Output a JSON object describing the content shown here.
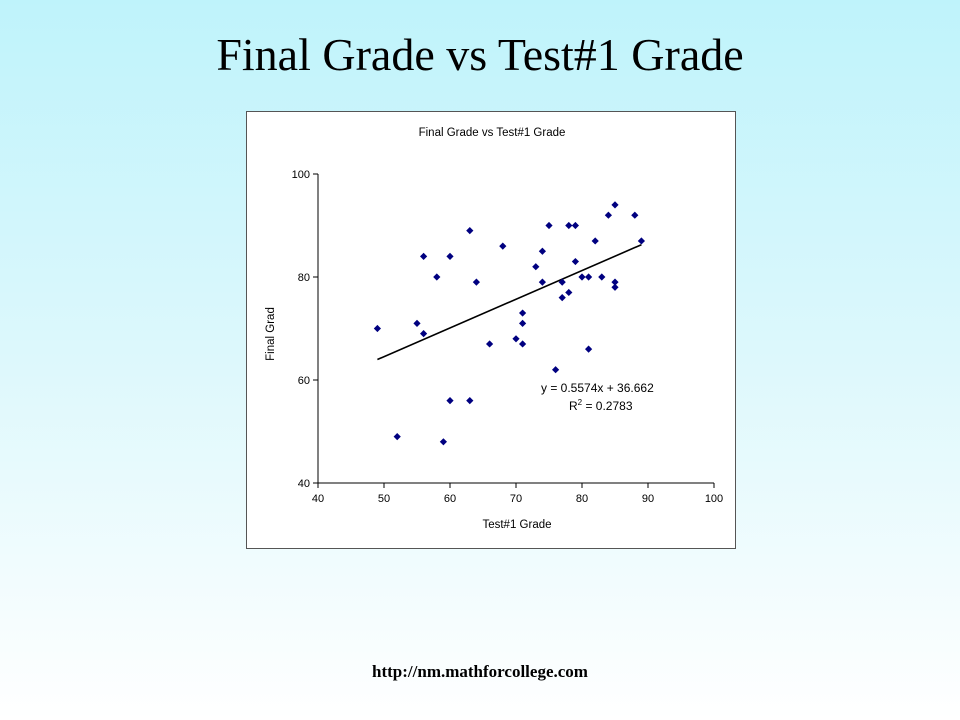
{
  "slide": {
    "title": "Final Grade vs Test#1 Grade",
    "footer": "http://nm.mathforcollege.com"
  },
  "chart_data": {
    "type": "scatter",
    "title": "Final Grade vs Test#1 Grade",
    "xlabel": "Test#1 Grade",
    "ylabel": "Final Grad",
    "xlim": [
      40,
      100
    ],
    "ylim": [
      40,
      100
    ],
    "xticks": [
      40,
      50,
      60,
      70,
      80,
      90,
      100
    ],
    "yticks": [
      40,
      60,
      80,
      100
    ],
    "grid": false,
    "legend": "none",
    "marker": "diamond",
    "marker_color": "#000080",
    "points": [
      [
        49,
        70
      ],
      [
        52,
        49
      ],
      [
        55,
        71
      ],
      [
        56,
        69
      ],
      [
        56,
        84
      ],
      [
        58,
        80
      ],
      [
        59,
        48
      ],
      [
        60,
        84
      ],
      [
        60,
        56
      ],
      [
        63,
        89
      ],
      [
        63,
        56
      ],
      [
        64,
        79
      ],
      [
        66,
        67
      ],
      [
        68,
        86
      ],
      [
        70,
        68
      ],
      [
        71,
        73
      ],
      [
        71,
        71
      ],
      [
        71,
        67
      ],
      [
        73,
        82
      ],
      [
        74,
        85
      ],
      [
        74,
        79
      ],
      [
        75,
        90
      ],
      [
        76,
        62
      ],
      [
        77,
        79
      ],
      [
        77,
        76
      ],
      [
        78,
        90
      ],
      [
        78,
        77
      ],
      [
        79,
        90
      ],
      [
        79,
        83
      ],
      [
        80,
        80
      ],
      [
        81,
        80
      ],
      [
        81,
        66
      ],
      [
        82,
        87
      ],
      [
        83,
        80
      ],
      [
        84,
        92
      ],
      [
        85,
        94
      ],
      [
        85,
        79
      ],
      [
        85,
        78
      ],
      [
        88,
        92
      ],
      [
        89,
        87
      ]
    ],
    "trendline": {
      "type": "linear",
      "slope": 0.5574,
      "intercept": 36.662,
      "x_range": [
        49,
        89
      ],
      "equation": "y = 0.5574x + 36.662",
      "r2_prefix": "R",
      "r2_sup": "2",
      "r2_value": " = 0.2783"
    }
  }
}
